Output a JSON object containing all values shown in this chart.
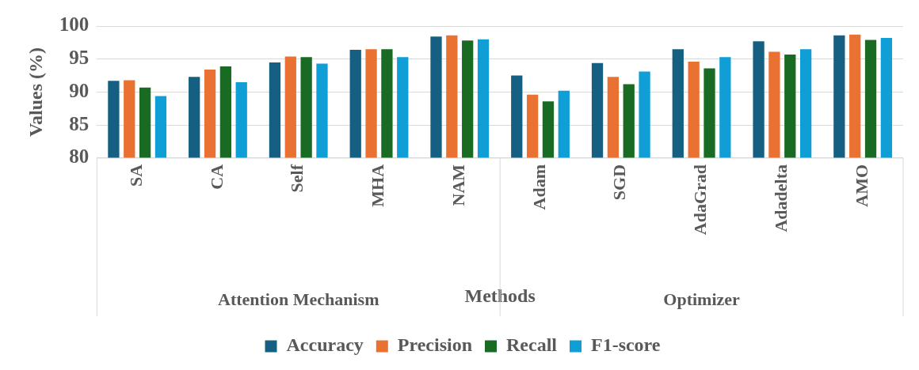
{
  "chart_data": {
    "type": "bar",
    "xlabel": "Methods",
    "ylabel": "Values (%)",
    "categories": [
      "SA",
      "CA",
      "Self",
      "MHA",
      "NAM",
      "Adam",
      "SGD",
      "AdaGrad",
      "Adadelta",
      "AMO"
    ],
    "series": [
      {
        "name": "Accuracy",
        "color": "#156082",
        "values": [
          91.7,
          92.3,
          94.5,
          96.4,
          98.4,
          92.5,
          94.4,
          96.5,
          97.7,
          98.6
        ]
      },
      {
        "name": "Precision",
        "color": "#e97132",
        "values": [
          91.8,
          93.4,
          95.4,
          96.5,
          98.6,
          89.6,
          92.3,
          94.6,
          96.1,
          98.7
        ]
      },
      {
        "name": "Recall",
        "color": "#196b24",
        "values": [
          90.7,
          93.9,
          95.3,
          96.5,
          97.8,
          88.6,
          91.2,
          93.6,
          95.7,
          97.9
        ]
      },
      {
        "name": "F1-score",
        "color": "#0f9ed5",
        "values": [
          89.4,
          91.5,
          94.3,
          95.3,
          98.0,
          90.2,
          93.1,
          95.3,
          96.5,
          98.2
        ]
      }
    ],
    "annotations": [
      {
        "text": "Attention Mechanism",
        "x": "Self"
      },
      {
        "text": "Optimizer",
        "x": "AdaGrad"
      }
    ],
    "ylim": [
      80,
      100
    ],
    "yticks": [
      80,
      85,
      90,
      95,
      100
    ],
    "grid": "y",
    "legend": "bottom"
  }
}
